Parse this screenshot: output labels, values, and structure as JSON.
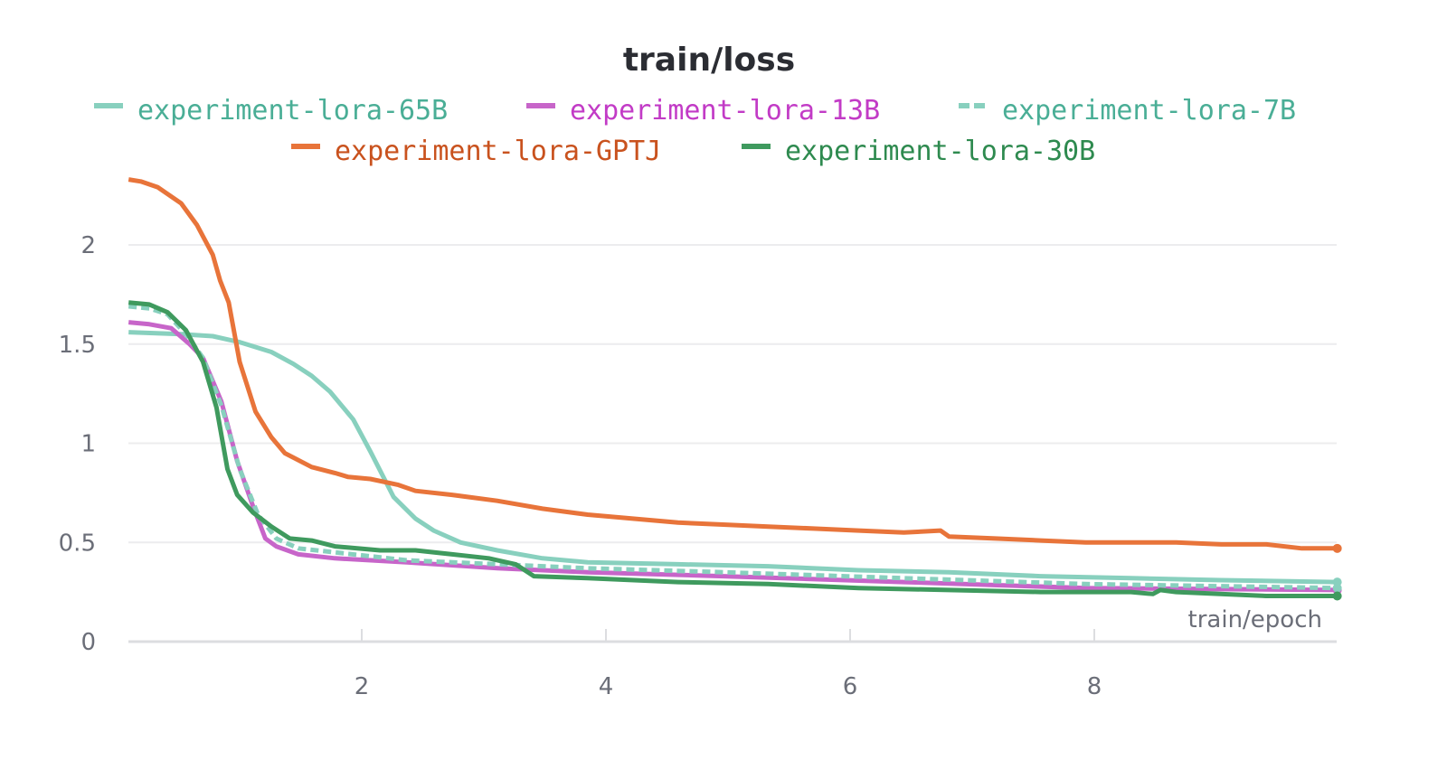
{
  "chart_data": {
    "type": "line",
    "title": "train/loss",
    "xlabel": "train/epoch",
    "ylabel": "",
    "xlim": [
      0,
      10
    ],
    "ylim": [
      0,
      2.4
    ],
    "xticks": [
      "2",
      "4",
      "6",
      "8"
    ],
    "yticks": [
      "0",
      "0.5",
      "1",
      "1.5",
      "2"
    ],
    "grid": true,
    "legend_position": "top-center",
    "series": [
      {
        "name": "experiment-lora-65B",
        "color": "#88d0be",
        "text_color": "#4aae96",
        "dash": false,
        "x": [
          0.09,
          0.52,
          0.78,
          1.0,
          1.26,
          1.44,
          1.59,
          1.74,
          1.93,
          2.07,
          2.26,
          2.44,
          2.59,
          2.81,
          3.11,
          3.48,
          3.85,
          4.59,
          5.33,
          6.07,
          6.81,
          7.56,
          8.3,
          9.04,
          9.99
        ],
        "y": [
          1.56,
          1.55,
          1.54,
          1.51,
          1.46,
          1.4,
          1.34,
          1.26,
          1.12,
          0.96,
          0.73,
          0.62,
          0.56,
          0.5,
          0.46,
          0.42,
          0.4,
          0.39,
          0.38,
          0.36,
          0.35,
          0.33,
          0.32,
          0.31,
          0.3
        ]
      },
      {
        "name": "experiment-lora-13B",
        "color": "#c765c9",
        "text_color": "#c23bc6",
        "dash": false,
        "x": [
          0.09,
          0.26,
          0.44,
          0.59,
          0.7,
          0.85,
          0.98,
          1.11,
          1.21,
          1.3,
          1.48,
          1.78,
          2.37,
          3.11,
          3.85,
          4.96,
          6.44,
          7.93,
          9.99
        ],
        "y": [
          1.61,
          1.6,
          1.58,
          1.5,
          1.43,
          1.21,
          0.91,
          0.68,
          0.52,
          0.48,
          0.44,
          0.42,
          0.4,
          0.37,
          0.35,
          0.33,
          0.3,
          0.27,
          0.26
        ]
      },
      {
        "name": "experiment-lora-7B",
        "color": "#88d0be",
        "text_color": "#4aae96",
        "dash": true,
        "x": [
          0.09,
          0.26,
          0.41,
          0.56,
          0.7,
          0.85,
          1.0,
          1.15,
          1.3,
          1.48,
          1.78,
          2.37,
          3.11,
          3.85,
          4.96,
          6.44,
          7.93,
          9.99
        ],
        "y": [
          1.69,
          1.68,
          1.65,
          1.55,
          1.43,
          1.19,
          0.87,
          0.64,
          0.52,
          0.47,
          0.45,
          0.41,
          0.39,
          0.37,
          0.35,
          0.32,
          0.29,
          0.27
        ]
      },
      {
        "name": "experiment-lora-GPTJ",
        "color": "#e8743a",
        "text_color": "#c9521e",
        "dash": false,
        "x": [
          0.09,
          0.19,
          0.33,
          0.52,
          0.65,
          0.78,
          0.84,
          0.91,
          1.0,
          1.13,
          1.26,
          1.37,
          1.59,
          1.78,
          1.89,
          2.07,
          2.3,
          2.44,
          2.74,
          3.11,
          3.48,
          3.85,
          4.22,
          4.59,
          4.96,
          5.33,
          5.7,
          6.07,
          6.44,
          6.74,
          6.81,
          7.19,
          7.56,
          7.93,
          8.3,
          8.67,
          9.04,
          9.41,
          9.7,
          9.99
        ],
        "y": [
          2.33,
          2.32,
          2.29,
          2.21,
          2.1,
          1.95,
          1.82,
          1.71,
          1.41,
          1.16,
          1.03,
          0.95,
          0.88,
          0.85,
          0.83,
          0.82,
          0.79,
          0.76,
          0.74,
          0.71,
          0.67,
          0.64,
          0.62,
          0.6,
          0.59,
          0.58,
          0.57,
          0.56,
          0.55,
          0.56,
          0.53,
          0.52,
          0.51,
          0.5,
          0.5,
          0.5,
          0.49,
          0.49,
          0.47,
          0.47
        ]
      },
      {
        "name": "experiment-lora-30B",
        "color": "#3f9a5e",
        "text_color": "#2e8a4f",
        "dash": false,
        "x": [
          0.09,
          0.26,
          0.41,
          0.56,
          0.7,
          0.81,
          0.9,
          0.98,
          1.11,
          1.26,
          1.41,
          1.59,
          1.78,
          2.15,
          2.44,
          2.74,
          3.04,
          3.26,
          3.41,
          3.85,
          4.59,
          5.33,
          6.07,
          6.81,
          7.56,
          8.3,
          8.48,
          8.54,
          8.67,
          9.41,
          9.99
        ],
        "y": [
          1.71,
          1.7,
          1.66,
          1.57,
          1.41,
          1.18,
          0.87,
          0.74,
          0.65,
          0.58,
          0.52,
          0.51,
          0.48,
          0.46,
          0.46,
          0.44,
          0.42,
          0.39,
          0.33,
          0.32,
          0.3,
          0.29,
          0.27,
          0.26,
          0.25,
          0.25,
          0.24,
          0.26,
          0.25,
          0.23,
          0.23
        ]
      }
    ]
  }
}
